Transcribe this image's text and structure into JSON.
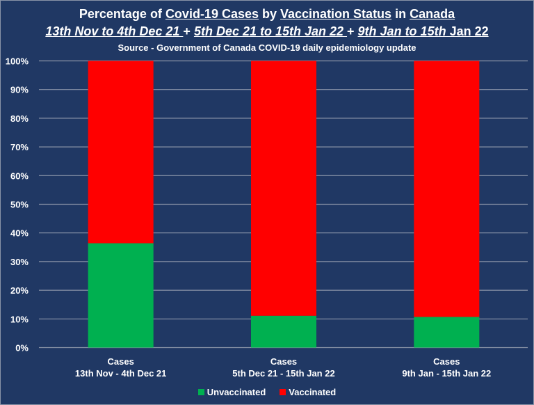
{
  "titles": {
    "line1": [
      {
        "text": "Percentage of ",
        "u": false
      },
      {
        "text": "Covid-19 Cases",
        "u": true
      },
      {
        "text": " by ",
        "u": false
      },
      {
        "text": "Vaccination Status",
        "u": true
      },
      {
        "text": " in ",
        "u": false
      },
      {
        "text": "Canada",
        "u": true
      }
    ],
    "line2": [
      {
        "text": "13th Nov to 4th Dec 21 ",
        "u": true,
        "i": true
      },
      {
        "text": "+ ",
        "u": false,
        "i": false
      },
      {
        "text": "5th Dec 21 to 15th Jan 22 ",
        "u": true,
        "i": true
      },
      {
        "text": "+ ",
        "u": false,
        "i": false
      },
      {
        "text": "9th Jan to 15th",
        "u": true,
        "i": true
      },
      {
        "text": " Jan 22",
        "u": true,
        "i": false
      }
    ],
    "line3": "Source - Government of Canada COVID-19 daily epidemiology update"
  },
  "chart_data": {
    "type": "bar",
    "stacked": true,
    "percent": true,
    "title": "Percentage of Covid-19 Cases by Vaccination Status in Canada",
    "subtitle": "13th Nov to 4th Dec 21 + 5th Dec 21 to 15th Jan 22 + 9th Jan to 15th Jan 22",
    "source": "Source - Government of Canada COVID-19 daily epidemiology update",
    "categories": [
      [
        "Cases",
        "13th Nov - 4th Dec 21"
      ],
      [
        "Cases",
        "5th Dec 21 - 15th Jan 22"
      ],
      [
        "Cases",
        "9th Jan - 15th Jan 22"
      ]
    ],
    "series": [
      {
        "name": "Unvaccinated",
        "color": "#00b050",
        "values": [
          36.4,
          11.1,
          10.7
        ]
      },
      {
        "name": "Vaccinated",
        "color": "#ff0000",
        "values": [
          63.6,
          88.9,
          89.3
        ]
      }
    ],
    "xlabel": "",
    "ylabel": "",
    "ylim": [
      0,
      100
    ],
    "yticks": [
      "0%",
      "10%",
      "20%",
      "30%",
      "40%",
      "50%",
      "60%",
      "70%",
      "80%",
      "90%",
      "100%"
    ],
    "grid": true,
    "legend_position": "bottom",
    "background": "#203864"
  }
}
